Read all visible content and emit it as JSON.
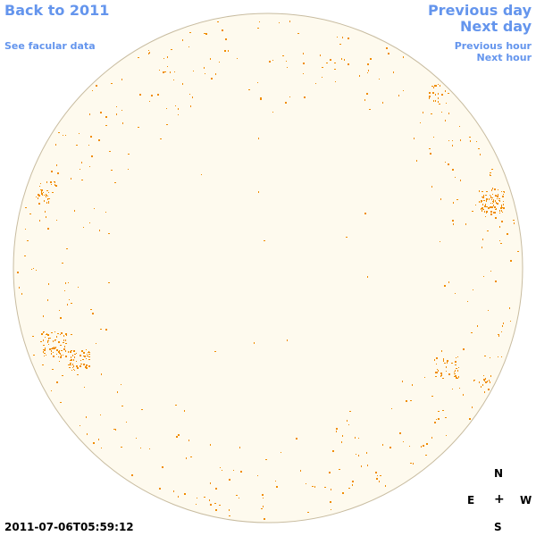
{
  "nav": {
    "back_label": "Back to 2011",
    "facular_label": "See facular data",
    "prev_day_label": "Previous day",
    "next_day_label": "Next day",
    "prev_hour_label": "Previous hour",
    "next_hour_label": "Next hour"
  },
  "compass": {
    "north": "N",
    "east": "E",
    "center": "+",
    "west": "W",
    "south": "S"
  },
  "timestamp": "2011-07-06T05:59:12",
  "colors": {
    "disk_fill": "#fefaee",
    "disk_stroke": "#c8bca0",
    "facula": "#f08c00",
    "link": "#6495ed"
  }
}
